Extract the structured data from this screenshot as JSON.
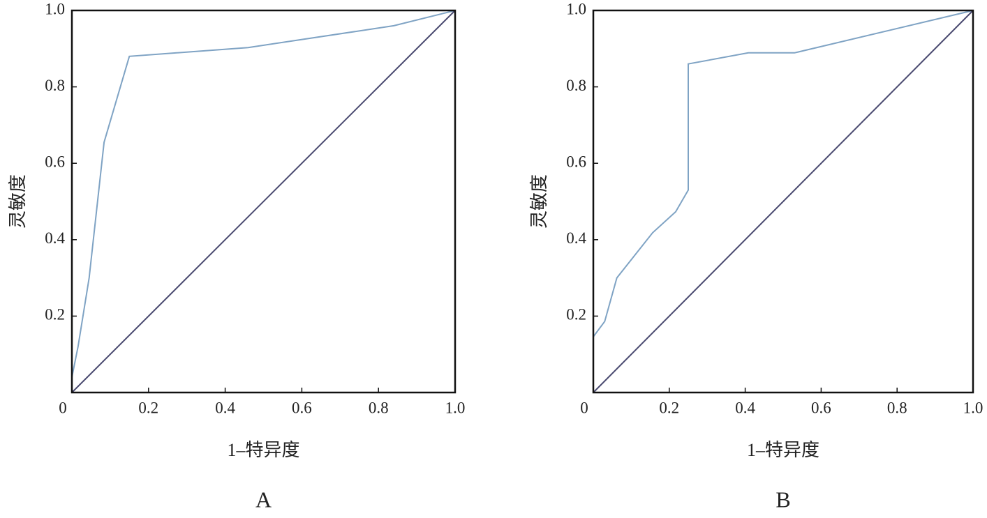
{
  "chart_data": [
    {
      "type": "line",
      "caption": "A",
      "xlabel": "1–特异度",
      "ylabel": "灵敏度",
      "xlim": [
        0,
        1
      ],
      "ylim": [
        0,
        1
      ],
      "xticks": [
        0,
        0.2,
        0.4,
        0.6,
        0.8,
        {
          "value": 1,
          "label": "1.0"
        }
      ],
      "yticks": [
        0.2,
        0.4,
        0.6,
        0.8,
        {
          "value": 1,
          "label": "1.0"
        }
      ],
      "grid": false,
      "series": [
        {
          "color": "#7fa3c4",
          "x": [
            0,
            0.016,
            0.045,
            0.084,
            0.15,
            0.46,
            0.84,
            1
          ],
          "values": [
            0.04,
            0.12,
            0.3,
            0.655,
            0.88,
            0.903,
            0.96,
            1
          ]
        },
        {
          "color": "#4a4a70",
          "x": [
            0,
            1
          ],
          "values": [
            0,
            1
          ]
        }
      ]
    },
    {
      "type": "line",
      "caption": "B",
      "xlabel": "1–特异度",
      "ylabel": "灵敏度",
      "xlim": [
        0,
        1
      ],
      "ylim": [
        0,
        1
      ],
      "xticks": [
        0,
        0.2,
        0.4,
        0.6,
        0.8,
        {
          "value": 1,
          "label": "1.0"
        }
      ],
      "yticks": [
        0.2,
        0.4,
        0.6,
        0.8,
        {
          "value": 1,
          "label": "1.0"
        }
      ],
      "grid": false,
      "series": [
        {
          "color": "#7fa3c4",
          "x": [
            0,
            0.03,
            0.062,
            0.156,
            0.217,
            0.25,
            0.25,
            0.408,
            0.53,
            1
          ],
          "values": [
            0.146,
            0.186,
            0.3,
            0.418,
            0.473,
            0.53,
            0.86,
            0.889,
            0.889,
            1
          ]
        },
        {
          "color": "#4a4a70",
          "x": [
            0,
            1
          ],
          "values": [
            0,
            1
          ]
        }
      ]
    }
  ]
}
